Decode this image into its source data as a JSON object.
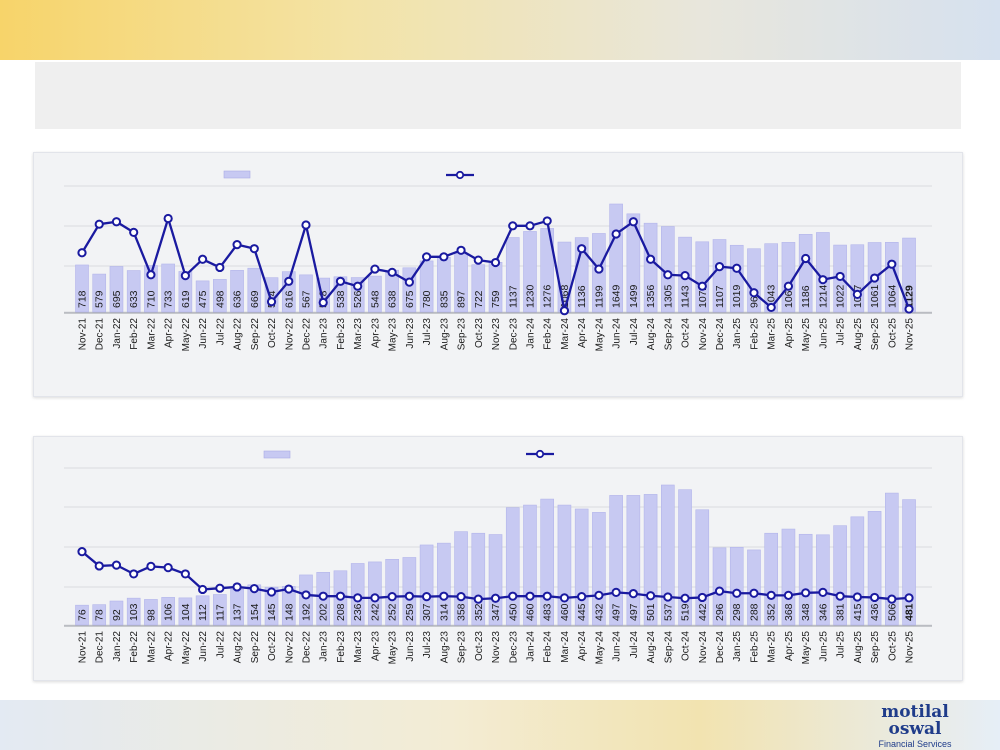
{
  "logo": {
    "line1": "motilal",
    "line2": "oswal",
    "sub": "Financial Services"
  },
  "chart_data": [
    {
      "type": "bar",
      "title": "",
      "categories": [
        "Nov-21",
        "Dec-21",
        "Jan-22",
        "Feb-22",
        "Mar-22",
        "Apr-22",
        "May-22",
        "Jun-22",
        "Jul-22",
        "Aug-22",
        "Sep-22",
        "Oct-22",
        "Nov-22",
        "Dec-22",
        "Jan-23",
        "Feb-23",
        "Mar-23",
        "Apr-23",
        "May-23",
        "Jun-23",
        "Jul-23",
        "Aug-23",
        "Sep-23",
        "Oct-23",
        "Nov-23",
        "Dec-23",
        "Jan-24",
        "Feb-24",
        "Mar-24",
        "Apr-24",
        "May-24",
        "Jun-24",
        "Jul-24",
        "Aug-24",
        "Sep-24",
        "Oct-24",
        "Nov-24",
        "Dec-24",
        "Jan-25",
        "Feb-25",
        "Mar-25",
        "Apr-25",
        "May-25",
        "Jun-25",
        "Jul-25",
        "Aug-25",
        "Sep-25",
        "Oct-25",
        "Nov-25"
      ],
      "values": [
        718,
        579,
        695,
        633,
        710,
        733,
        619,
        475,
        498,
        636,
        669,
        524,
        616,
        567,
        518,
        538,
        526,
        548,
        638,
        675,
        780,
        835,
        897,
        722,
        759,
        1137,
        1230,
        1276,
        1068,
        1136,
        1199,
        1649,
        1499,
        1356,
        1305,
        1143,
        1072,
        1107,
        1019,
        966,
        1043,
        1063,
        1186,
        1214,
        1022,
        1027,
        1061,
        1064,
        1129
      ],
      "line_values": [
        0.53,
        0.88,
        0.91,
        0.78,
        0.26,
        0.95,
        0.25,
        0.45,
        0.35,
        0.63,
        0.58,
        -0.07,
        0.18,
        0.87,
        -0.08,
        0.18,
        0.12,
        0.33,
        0.29,
        0.17,
        0.48,
        0.48,
        0.56,
        0.44,
        0.41,
        0.86,
        0.86,
        0.92,
        -0.18,
        0.58,
        0.33,
        0.76,
        0.91,
        0.45,
        0.26,
        0.25,
        0.12,
        0.36,
        0.34,
        0.04,
        -0.14,
        0.12,
        0.46,
        0.2,
        0.24,
        0.02,
        0.22,
        0.39,
        -0.16
      ],
      "highlight_last": true
    },
    {
      "type": "bar",
      "title": "",
      "categories": [
        "Nov-21",
        "Dec-21",
        "Jan-22",
        "Feb-22",
        "Mar-22",
        "Apr-22",
        "May-22",
        "Jun-22",
        "Jul-22",
        "Aug-22",
        "Sep-22",
        "Oct-22",
        "Nov-22",
        "Dec-22",
        "Jan-23",
        "Feb-23",
        "Mar-23",
        "Apr-23",
        "May-23",
        "Jun-23",
        "Jul-23",
        "Aug-23",
        "Sep-23",
        "Oct-23",
        "Nov-23",
        "Dec-23",
        "Jan-24",
        "Feb-24",
        "Mar-24",
        "Apr-24",
        "May-24",
        "Jun-24",
        "Jul-24",
        "Aug-24",
        "Sep-24",
        "Oct-24",
        "Nov-24",
        "Dec-24",
        "Jan-25",
        "Feb-25",
        "Mar-25",
        "Apr-25",
        "May-25",
        "Jun-25",
        "Jul-25",
        "Aug-25",
        "Sep-25",
        "Oct-25",
        "Nov-25"
      ],
      "values": [
        76,
        78,
        92,
        103,
        98,
        106,
        104,
        112,
        117,
        137,
        154,
        145,
        148,
        192,
        202,
        208,
        236,
        242,
        252,
        259,
        307,
        314,
        358,
        352,
        347,
        450,
        460,
        483,
        460,
        445,
        432,
        497,
        497,
        501,
        537,
        519,
        442,
        296,
        298,
        288,
        352,
        368,
        348,
        346,
        381,
        415,
        436,
        506,
        481
      ],
      "line_values": [
        1.27,
        0.93,
        0.95,
        0.74,
        0.92,
        0.89,
        0.74,
        0.37,
        0.4,
        0.43,
        0.39,
        0.31,
        0.38,
        0.24,
        0.21,
        0.21,
        0.17,
        0.17,
        0.2,
        0.21,
        0.2,
        0.21,
        0.2,
        0.14,
        0.16,
        0.21,
        0.21,
        0.21,
        0.17,
        0.2,
        0.23,
        0.3,
        0.27,
        0.22,
        0.19,
        0.16,
        0.18,
        0.33,
        0.28,
        0.28,
        0.23,
        0.23,
        0.29,
        0.3,
        0.21,
        0.19,
        0.18,
        0.14,
        0.17
      ],
      "highlight_last": true
    }
  ]
}
